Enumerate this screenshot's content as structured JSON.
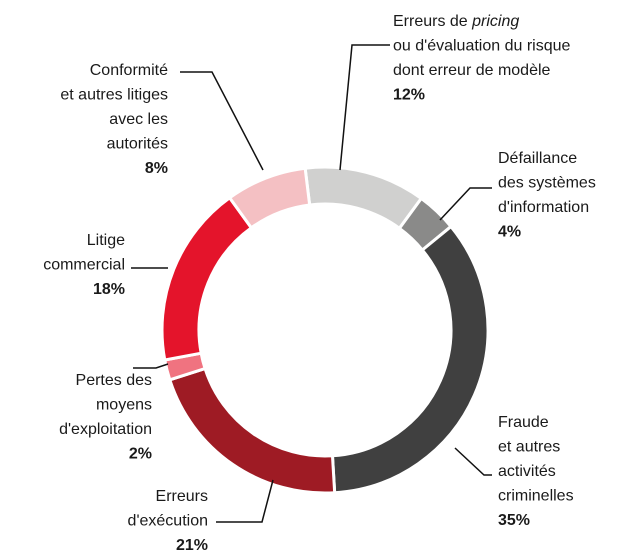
{
  "chart_data": {
    "type": "donut",
    "categories": [
      [
        [
          "Erreurs de ",
          "pricing"
        ],
        "ou d'évaluation du risque",
        "dont erreur de modèle"
      ],
      [
        "Défaillance",
        "des systèmes",
        "d'information"
      ],
      [
        "Fraude",
        "et autres",
        "activités",
        "criminelles"
      ],
      [
        "Erreurs",
        "d'exécution"
      ],
      [
        "Pertes des",
        "moyens",
        "d'exploitation"
      ],
      [
        "Litige",
        "commercial"
      ],
      [
        "Conformité",
        "et autres litiges",
        "avec les",
        "autorités"
      ]
    ],
    "values": [
      12,
      4,
      35,
      21,
      2,
      18,
      8
    ],
    "value_labels": [
      "12%",
      "4%",
      "35%",
      "21%",
      "2%",
      "18%",
      "8%"
    ],
    "colors": [
      "#d0d0cf",
      "#8a8a89",
      "#404040",
      "#9e1b24",
      "#f07380",
      "#e4142b",
      "#f4c0c3"
    ],
    "start_angle": -7
  }
}
